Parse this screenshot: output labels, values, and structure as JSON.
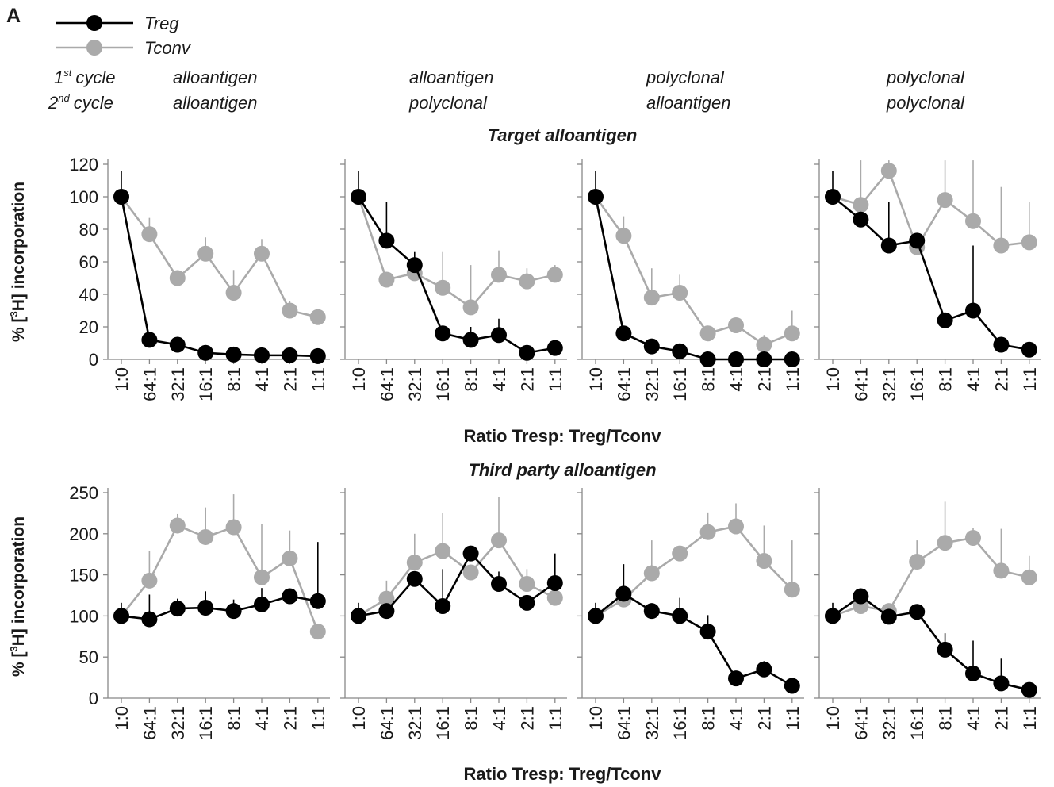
{
  "panel_letter": "A",
  "legend": [
    {
      "name": "Treg",
      "color": "#000000"
    },
    {
      "name": "Tconv",
      "color": "#aaaaaa"
    }
  ],
  "cycle_labels": {
    "first": {
      "num": "1",
      "sup": "st",
      "word": "cycle"
    },
    "second": {
      "num": "2",
      "sup": "nd",
      "word": "cycle"
    }
  },
  "conditions": [
    {
      "first": "alloantigen",
      "second": "alloantigen"
    },
    {
      "first": "alloantigen",
      "second": "polyclonal"
    },
    {
      "first": "polyclonal",
      "second": "alloantigen"
    },
    {
      "first": "polyclonal",
      "second": "polyclonal"
    }
  ],
  "colors": {
    "treg": "#000000",
    "tconv": "#aaaaaa",
    "axis": "#888888"
  },
  "chart_data": [
    {
      "type": "line",
      "title": "Target alloantigen",
      "xlabel": "Ratio Tresp: Treg/Tconv",
      "ylabel_parts": {
        "pre": "% [",
        "sup": "3",
        "post": "H] incorporation"
      },
      "categories": [
        "1:0",
        "64:1",
        "32:1",
        "16:1",
        "8:1",
        "4:1",
        "2:1",
        "1:1"
      ],
      "ylim": [
        0,
        120
      ],
      "yticks": [
        0,
        20,
        40,
        60,
        80,
        100,
        120
      ],
      "panels": [
        {
          "condition": "alloantigen / alloantigen",
          "series": [
            {
              "name": "Treg",
              "values": [
                100,
                12,
                9,
                4,
                3,
                2.5,
                2.5,
                2
              ],
              "error": [
                16,
                0,
                0,
                0,
                0,
                0,
                0,
                0
              ]
            },
            {
              "name": "Tconv",
              "values": [
                100,
                77,
                50,
                65,
                41,
                65,
                30,
                26
              ],
              "error": [
                0,
                10,
                0,
                10,
                14,
                9,
                6,
                0
              ]
            }
          ]
        },
        {
          "condition": "alloantigen / polyclonal",
          "series": [
            {
              "name": "Treg",
              "values": [
                100,
                73,
                58,
                16,
                12,
                15,
                4,
                7
              ],
              "error": [
                16,
                24,
                8,
                0,
                8,
                10,
                0,
                0
              ]
            },
            {
              "name": "Tconv",
              "values": [
                100,
                49,
                53,
                44,
                32,
                52,
                48,
                52
              ],
              "error": [
                0,
                0,
                8,
                22,
                26,
                15,
                8,
                6
              ]
            }
          ]
        },
        {
          "condition": "polyclonal / alloantigen",
          "series": [
            {
              "name": "Treg",
              "values": [
                100,
                16,
                8,
                5,
                0,
                0,
                0,
                0
              ],
              "error": [
                16,
                0,
                0,
                0,
                0,
                0,
                0,
                0
              ]
            },
            {
              "name": "Tconv",
              "values": [
                100,
                76,
                38,
                41,
                16,
                21,
                9,
                16
              ],
              "error": [
                0,
                12,
                18,
                11,
                0,
                0,
                6,
                14
              ]
            }
          ]
        },
        {
          "condition": "polyclonal / polyclonal",
          "series": [
            {
              "name": "Treg",
              "values": [
                100,
                86,
                70,
                73,
                24,
                30,
                9,
                6
              ],
              "error": [
                16,
                0,
                27,
                0,
                0,
                40,
                0,
                0
              ]
            },
            {
              "name": "Tconv",
              "values": [
                100,
                95,
                116,
                69,
                98,
                85,
                70,
                72
              ],
              "error": [
                0,
                30,
                8,
                0,
                27,
                40,
                36,
                25
              ]
            }
          ]
        }
      ]
    },
    {
      "type": "line",
      "title": "Third party alloantigen",
      "xlabel": "Ratio Tresp: Treg/Tconv",
      "ylabel_parts": {
        "pre": "% [",
        "sup": "3",
        "post": "H] incorporation"
      },
      "categories": [
        "1:0",
        "64:1",
        "32:1",
        "16:1",
        "8:1",
        "4:1",
        "2:1",
        "1:1"
      ],
      "ylim": [
        0,
        250
      ],
      "yticks": [
        0,
        50,
        100,
        150,
        200,
        250
      ],
      "panels": [
        {
          "condition": "alloantigen / alloantigen",
          "series": [
            {
              "name": "Treg",
              "values": [
                100,
                96,
                109,
                110,
                106,
                114,
                124,
                118
              ],
              "error": [
                16,
                30,
                12,
                20,
                14,
                20,
                0,
                72
              ]
            },
            {
              "name": "Tconv",
              "values": [
                100,
                143,
                210,
                196,
                208,
                147,
                170,
                81
              ],
              "error": [
                0,
                36,
                14,
                36,
                40,
                65,
                34,
                0
              ]
            }
          ]
        },
        {
          "condition": "alloantigen / polyclonal",
          "series": [
            {
              "name": "Treg",
              "values": [
                100,
                106,
                145,
                112,
                176,
                139,
                116,
                140
              ],
              "error": [
                16,
                0,
                0,
                45,
                0,
                15,
                0,
                36
              ]
            },
            {
              "name": "Tconv",
              "values": [
                100,
                121,
                165,
                179,
                153,
                192,
                139,
                122
              ],
              "error": [
                0,
                22,
                35,
                46,
                0,
                53,
                18,
                0
              ]
            }
          ]
        },
        {
          "condition": "polyclonal / alloantigen",
          "series": [
            {
              "name": "Treg",
              "values": [
                100,
                127,
                106,
                100,
                81,
                24,
                35,
                15
              ],
              "error": [
                16,
                36,
                0,
                22,
                20,
                0,
                10,
                0
              ]
            },
            {
              "name": "Tconv",
              "values": [
                100,
                120,
                152,
                176,
                202,
                209,
                167,
                132
              ],
              "error": [
                0,
                0,
                40,
                0,
                24,
                28,
                43,
                60
              ]
            }
          ]
        },
        {
          "condition": "polyclonal / polyclonal",
          "series": [
            {
              "name": "Treg",
              "values": [
                100,
                124,
                99,
                105,
                59,
                30,
                18,
                10
              ],
              "error": [
                16,
                0,
                0,
                0,
                20,
                40,
                30,
                0
              ]
            },
            {
              "name": "Tconv",
              "values": [
                100,
                112,
                106,
                166,
                189,
                195,
                155,
                147
              ],
              "error": [
                0,
                0,
                0,
                26,
                50,
                12,
                51,
                26
              ]
            }
          ]
        }
      ]
    }
  ]
}
